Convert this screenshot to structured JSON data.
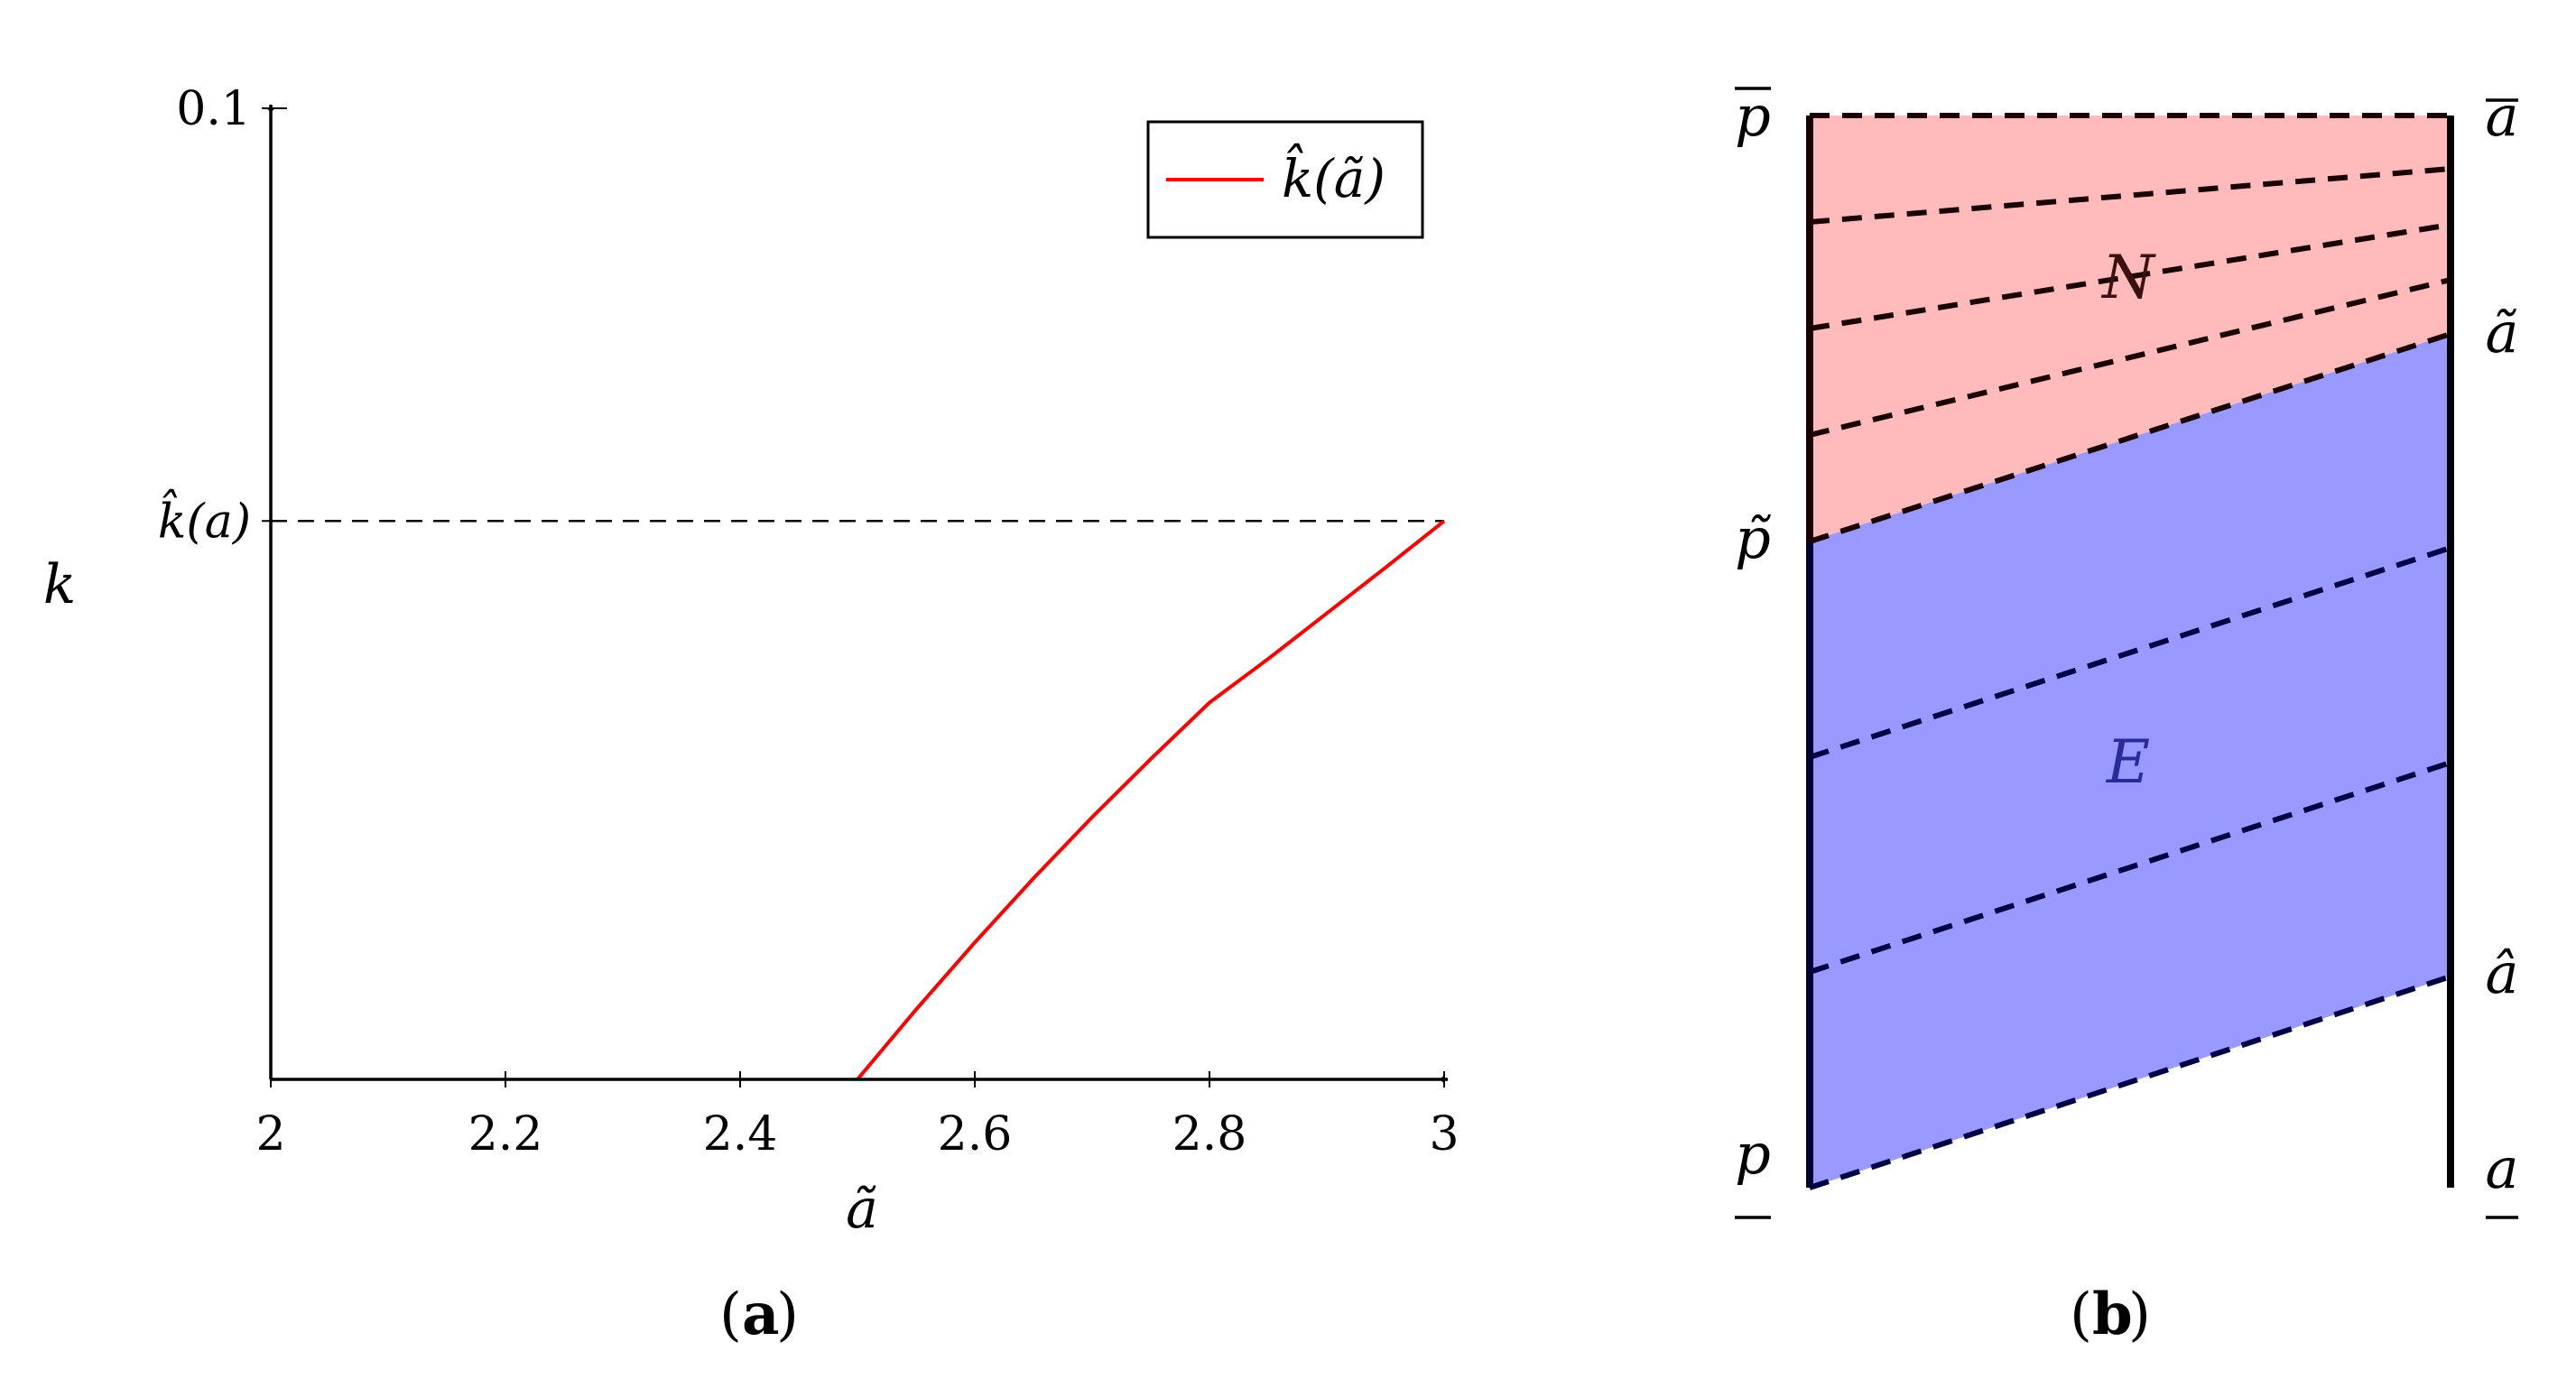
{
  "chart_data": [
    {
      "panel": "(a)",
      "panel_letter": "a",
      "type": "line",
      "xlabel": "ã",
      "ylabel": "k",
      "xlim": [
        2,
        3
      ],
      "x_ticks": [
        2,
        2.2,
        2.4,
        2.6,
        2.8,
        3
      ],
      "x_tick_labels": [
        "2",
        "2.2",
        "2.4",
        "2.6",
        "2.8",
        "3"
      ],
      "y_ticks": [
        {
          "label": "0.1",
          "value": 0.1
        },
        {
          "label": "k̂(a)",
          "value": 0.0575
        }
      ],
      "ylim": [
        0,
        0.1
      ],
      "grid": false,
      "legend_position": "top-right",
      "reference_line": {
        "y": 0.0575,
        "style": "dashed",
        "color": "#000000"
      },
      "series": [
        {
          "name": "k̂(ã)",
          "color": "#ff0000",
          "x": [
            2.5,
            2.55,
            2.6,
            2.65,
            2.7,
            2.75,
            2.8,
            2.85,
            2.9,
            2.95,
            3.0
          ],
          "y": [
            0.0,
            0.0072,
            0.0141,
            0.0207,
            0.027,
            0.033,
            0.0388,
            0.0433,
            0.048,
            0.0527,
            0.0575
          ]
        }
      ]
    },
    {
      "panel": "(b)",
      "panel_letter": "b",
      "type": "diagram",
      "left_axis_labels": [
        "p",
        "p̃",
        "p"
      ],
      "right_axis_labels": [
        "a",
        "ã",
        "â",
        "a"
      ],
      "regions": [
        {
          "name": "N",
          "color": "#ffbbbb"
        },
        {
          "name": "E",
          "color": "#9999ff"
        }
      ]
    }
  ]
}
